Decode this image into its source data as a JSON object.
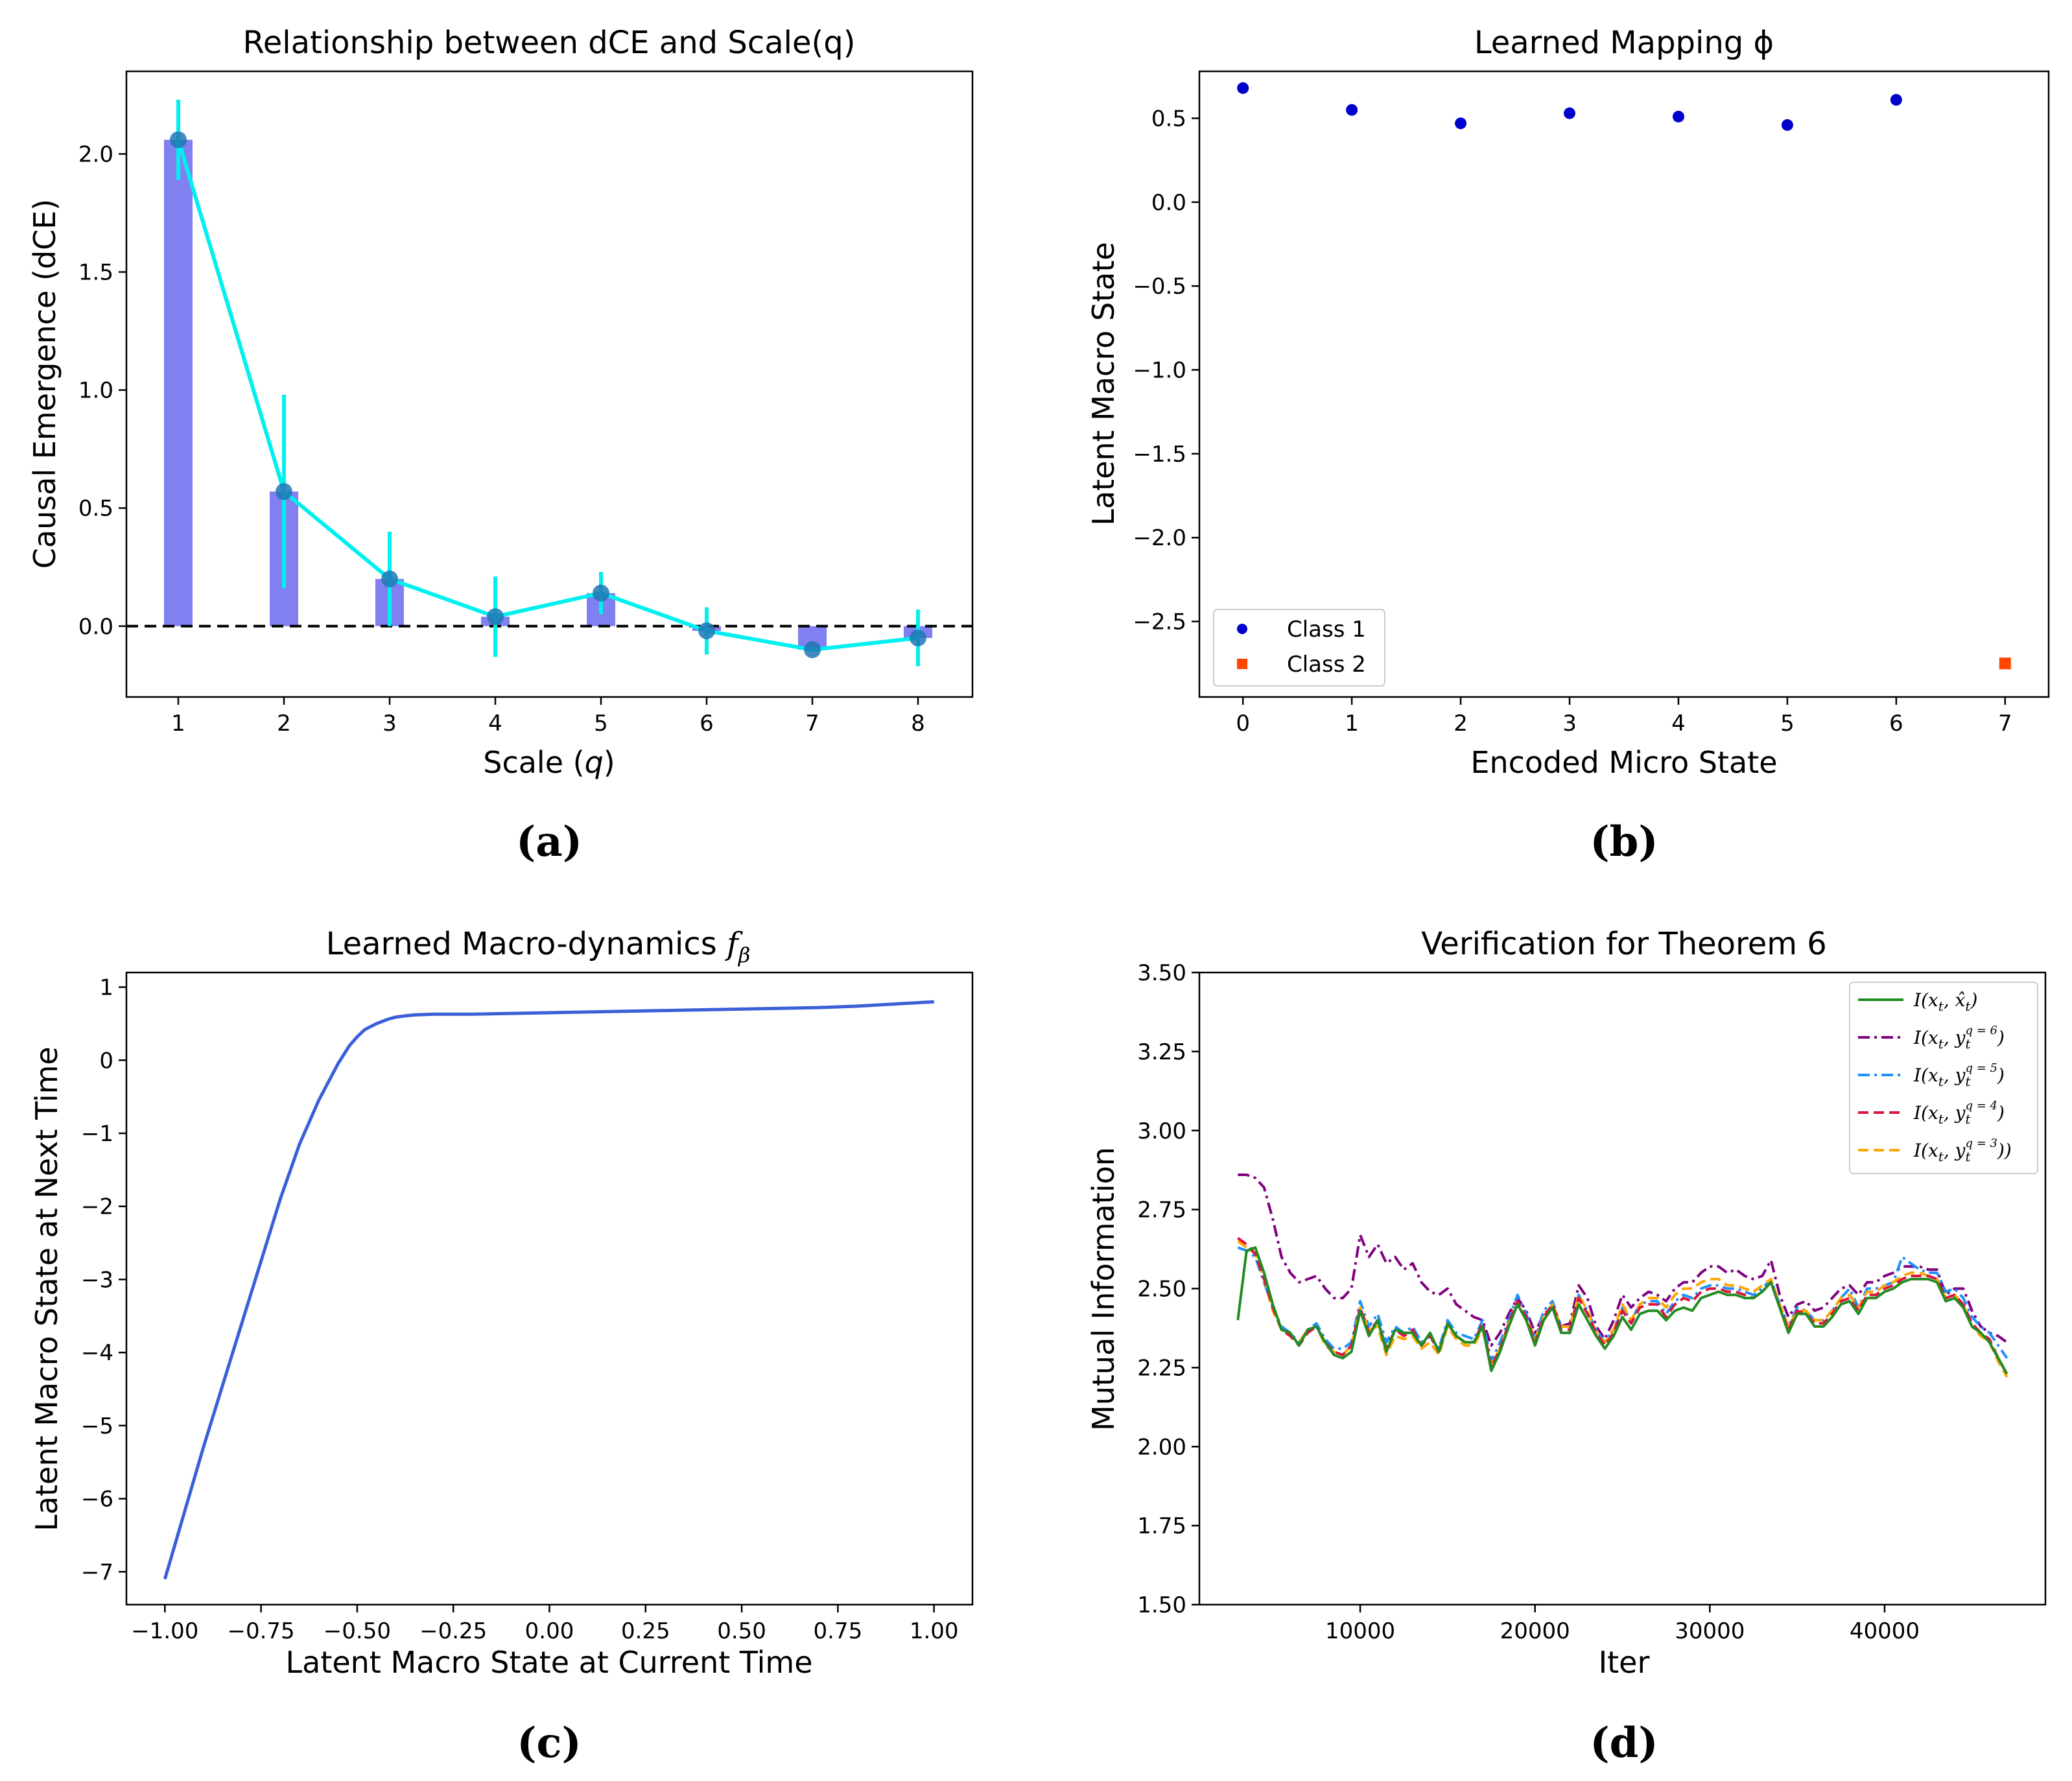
{
  "chart_data": [
    {
      "id": "a",
      "type": "bar",
      "panel_label": "(a)",
      "title": "Relationship between dCE and Scale(q)",
      "xlabel": "Scale (q)",
      "ylabel": "Causal Emergence (dCE)",
      "categories": [
        "1",
        "2",
        "3",
        "4",
        "5",
        "6",
        "7",
        "8"
      ],
      "values": [
        2.06,
        0.57,
        0.2,
        0.04,
        0.14,
        -0.02,
        -0.1,
        -0.05
      ],
      "errors": [
        0.17,
        0.41,
        0.2,
        0.17,
        0.09,
        0.1,
        0.0,
        0.12
      ],
      "ylim": [
        -0.3,
        2.35
      ],
      "yticks": [
        "0.0",
        "0.5",
        "1.0",
        "1.5",
        "2.0"
      ],
      "ytick_values": [
        0,
        0.5,
        1.0,
        1.5,
        2.0
      ],
      "bar_color": "#8080f0",
      "line_color": "#00f0f0",
      "marker_color": "#1f77b4",
      "reference_line": 0
    },
    {
      "id": "b",
      "type": "scatter",
      "panel_label": "(b)",
      "title": "Learned Mapping ϕ",
      "xlabel": "Encoded Micro State",
      "ylabel": "Latent Macro State",
      "xlim": [
        -0.4,
        7.4
      ],
      "ylim": [
        -2.95,
        0.78
      ],
      "xticks": [
        "0",
        "1",
        "2",
        "3",
        "4",
        "5",
        "6",
        "7"
      ],
      "xtick_values": [
        0,
        1,
        2,
        3,
        4,
        5,
        6,
        7
      ],
      "yticks": [
        "0.5",
        "0.0",
        "−0.5",
        "−1.0",
        "−1.5",
        "−2.0",
        "−2.5"
      ],
      "ytick_values": [
        0.5,
        0.0,
        -0.5,
        -1.0,
        -1.5,
        -2.0,
        -2.5
      ],
      "series": [
        {
          "name": "Class 1",
          "color": "#0000cd",
          "marker": "circle",
          "x": [
            0,
            1,
            2,
            3,
            4,
            5,
            6
          ],
          "y": [
            0.68,
            0.55,
            0.47,
            0.53,
            0.51,
            0.46,
            0.61
          ]
        },
        {
          "name": "Class 2",
          "color": "#ff4500",
          "marker": "square",
          "x": [
            7
          ],
          "y": [
            -2.75
          ]
        }
      ],
      "legend_position": "lower-left"
    },
    {
      "id": "c",
      "type": "line",
      "panel_label": "(c)",
      "title": "Learned Macro-dynamics",
      "title_symbol": "f",
      "title_sub": "β",
      "xlabel": "Latent Macro State at Current Time",
      "ylabel": "Latent Macro State at Next Time",
      "xlim": [
        -1.1,
        1.1
      ],
      "ylim": [
        -7.45,
        1.2
      ],
      "xticks": [
        "−1.00",
        "−0.75",
        "−0.50",
        "−0.25",
        "0.00",
        "0.25",
        "0.50",
        "0.75",
        "1.00"
      ],
      "xtick_values": [
        -1.0,
        -0.75,
        -0.5,
        -0.25,
        0.0,
        0.25,
        0.5,
        0.75,
        1.0
      ],
      "yticks": [
        "1",
        "0",
        "−1",
        "−2",
        "−3",
        "−4",
        "−5",
        "−6",
        "−7"
      ],
      "ytick_values": [
        1,
        0,
        -1,
        -2,
        -3,
        -4,
        -5,
        -6,
        -7
      ],
      "color": "#3a5fd8",
      "x": [
        -1.0,
        -0.9,
        -0.8,
        -0.75,
        -0.7,
        -0.65,
        -0.6,
        -0.55,
        -0.52,
        -0.5,
        -0.48,
        -0.45,
        -0.42,
        -0.4,
        -0.37,
        -0.35,
        -0.3,
        -0.25,
        -0.2,
        -0.1,
        0.0,
        0.1,
        0.2,
        0.3,
        0.4,
        0.5,
        0.6,
        0.7,
        0.8,
        0.9,
        1.0
      ],
      "y": [
        -7.1,
        -5.3,
        -3.6,
        -2.75,
        -1.9,
        -1.15,
        -0.55,
        -0.05,
        0.2,
        0.32,
        0.42,
        0.5,
        0.56,
        0.59,
        0.61,
        0.62,
        0.63,
        0.63,
        0.63,
        0.64,
        0.65,
        0.66,
        0.67,
        0.68,
        0.69,
        0.7,
        0.71,
        0.72,
        0.74,
        0.77,
        0.8
      ]
    },
    {
      "id": "d",
      "type": "line",
      "panel_label": "(d)",
      "title": "Verification for Theorem 6",
      "xlabel": "Iter",
      "ylabel": "Mutual Information",
      "xlim": [
        800,
        49200
      ],
      "ylim": [
        1.5,
        3.5
      ],
      "xticks": [
        "10000",
        "20000",
        "30000",
        "40000"
      ],
      "xtick_values": [
        10000,
        20000,
        30000,
        40000
      ],
      "yticks": [
        "3.50",
        "3.25",
        "3.00",
        "2.75",
        "2.50",
        "2.25",
        "2.00",
        "1.75",
        "1.50"
      ],
      "ytick_values": [
        3.5,
        3.25,
        3.0,
        2.75,
        2.5,
        2.25,
        2.0,
        1.75,
        1.5
      ],
      "x": [
        3000,
        3500,
        4000,
        4500,
        5000,
        5500,
        6000,
        6500,
        7000,
        7500,
        8000,
        8500,
        9000,
        9500,
        10000,
        10500,
        11000,
        11500,
        12000,
        12500,
        13000,
        13500,
        14000,
        14500,
        15000,
        15500,
        16000,
        16500,
        17000,
        17500,
        18000,
        18500,
        19000,
        19500,
        20000,
        20500,
        21000,
        21500,
        22000,
        22500,
        23000,
        23500,
        24000,
        24500,
        25000,
        25500,
        26000,
        26500,
        27000,
        27500,
        28000,
        28500,
        29000,
        29500,
        30000,
        30500,
        31000,
        31500,
        32000,
        32500,
        33000,
        33500,
        34000,
        34500,
        35000,
        35500,
        36000,
        36500,
        37000,
        37500,
        38000,
        38500,
        39000,
        39500,
        40000,
        40500,
        41000,
        41500,
        42000,
        42500,
        43000,
        43500,
        44000,
        44500,
        45000,
        45500,
        46000,
        46500,
        47000
      ],
      "series": [
        {
          "name": "I(x_t, x̂_t)",
          "legend": [
            "I(x",
            "t",
            ", x̂",
            "t",
            ")"
          ],
          "color": "#228b22",
          "dash": "solid",
          "y": [
            2.4,
            2.62,
            2.63,
            2.55,
            2.45,
            2.37,
            2.36,
            2.32,
            2.37,
            2.38,
            2.33,
            2.29,
            2.28,
            2.3,
            2.43,
            2.35,
            2.4,
            2.3,
            2.37,
            2.36,
            2.36,
            2.32,
            2.36,
            2.3,
            2.39,
            2.35,
            2.33,
            2.33,
            2.38,
            2.24,
            2.3,
            2.38,
            2.45,
            2.4,
            2.32,
            2.4,
            2.44,
            2.36,
            2.36,
            2.45,
            2.4,
            2.35,
            2.31,
            2.35,
            2.41,
            2.37,
            2.42,
            2.43,
            2.43,
            2.4,
            2.43,
            2.44,
            2.43,
            2.47,
            2.48,
            2.49,
            2.48,
            2.48,
            2.47,
            2.47,
            2.49,
            2.52,
            2.44,
            2.36,
            2.42,
            2.42,
            2.38,
            2.38,
            2.41,
            2.45,
            2.46,
            2.42,
            2.47,
            2.47,
            2.49,
            2.5,
            2.52,
            2.53,
            2.53,
            2.53,
            2.52,
            2.46,
            2.47,
            2.44,
            2.38,
            2.36,
            2.33,
            2.28,
            2.23
          ]
        },
        {
          "name": "I(x_t, y_t^{q=6})",
          "legend": [
            "I(x",
            "t",
            ", y",
            "t",
            "q = 6",
            ")"
          ],
          "color": "#800080",
          "dash": "dashdot",
          "y": [
            2.86,
            2.86,
            2.85,
            2.82,
            2.72,
            2.6,
            2.55,
            2.52,
            2.53,
            2.54,
            2.5,
            2.47,
            2.47,
            2.5,
            2.67,
            2.6,
            2.64,
            2.58,
            2.6,
            2.56,
            2.58,
            2.52,
            2.49,
            2.48,
            2.5,
            2.45,
            2.43,
            2.41,
            2.4,
            2.32,
            2.36,
            2.42,
            2.47,
            2.43,
            2.36,
            2.42,
            2.44,
            2.38,
            2.39,
            2.51,
            2.47,
            2.38,
            2.34,
            2.4,
            2.48,
            2.44,
            2.47,
            2.49,
            2.48,
            2.46,
            2.5,
            2.52,
            2.52,
            2.55,
            2.57,
            2.57,
            2.55,
            2.56,
            2.54,
            2.53,
            2.54,
            2.59,
            2.48,
            2.41,
            2.45,
            2.46,
            2.43,
            2.44,
            2.47,
            2.5,
            2.51,
            2.48,
            2.52,
            2.52,
            2.54,
            2.55,
            2.57,
            2.57,
            2.57,
            2.56,
            2.56,
            2.48,
            2.5,
            2.5,
            2.43,
            2.38,
            2.36,
            2.35,
            2.33
          ]
        },
        {
          "name": "I(x_t, y_t^{q=5})",
          "legend": [
            "I(x",
            "t",
            ", y",
            "t",
            "q = 5",
            ")"
          ],
          "color": "#1e90ff",
          "dash": "dashdot",
          "y": [
            2.63,
            2.62,
            2.6,
            2.52,
            2.44,
            2.38,
            2.36,
            2.33,
            2.37,
            2.39,
            2.34,
            2.31,
            2.31,
            2.33,
            2.46,
            2.38,
            2.42,
            2.33,
            2.38,
            2.36,
            2.38,
            2.33,
            2.35,
            2.31,
            2.4,
            2.36,
            2.35,
            2.34,
            2.4,
            2.27,
            2.33,
            2.4,
            2.48,
            2.42,
            2.34,
            2.43,
            2.46,
            2.38,
            2.38,
            2.48,
            2.43,
            2.37,
            2.33,
            2.37,
            2.44,
            2.4,
            2.45,
            2.46,
            2.46,
            2.42,
            2.46,
            2.48,
            2.47,
            2.5,
            2.51,
            2.51,
            2.5,
            2.5,
            2.49,
            2.48,
            2.5,
            2.53,
            2.45,
            2.38,
            2.44,
            2.43,
            2.4,
            2.4,
            2.43,
            2.47,
            2.5,
            2.44,
            2.5,
            2.5,
            2.51,
            2.52,
            2.6,
            2.58,
            2.56,
            2.55,
            2.55,
            2.49,
            2.5,
            2.47,
            2.41,
            2.38,
            2.36,
            2.32,
            2.28
          ]
        },
        {
          "name": "I(x_t, y_t^{q=4})",
          "legend": [
            "I(x",
            "t",
            ", y",
            "t",
            "q = 4",
            ")"
          ],
          "color": "#dc143c",
          "dash": "dashed",
          "y": [
            2.66,
            2.64,
            2.61,
            2.53,
            2.44,
            2.37,
            2.35,
            2.32,
            2.36,
            2.38,
            2.33,
            2.3,
            2.29,
            2.32,
            2.44,
            2.36,
            2.4,
            2.31,
            2.37,
            2.35,
            2.37,
            2.32,
            2.35,
            2.3,
            2.39,
            2.35,
            2.33,
            2.33,
            2.39,
            2.25,
            2.31,
            2.39,
            2.46,
            2.41,
            2.33,
            2.41,
            2.45,
            2.37,
            2.37,
            2.47,
            2.42,
            2.36,
            2.32,
            2.36,
            2.43,
            2.39,
            2.44,
            2.45,
            2.45,
            2.41,
            2.45,
            2.47,
            2.46,
            2.49,
            2.5,
            2.5,
            2.49,
            2.49,
            2.48,
            2.47,
            2.49,
            2.52,
            2.44,
            2.37,
            2.43,
            2.42,
            2.39,
            2.39,
            2.42,
            2.46,
            2.47,
            2.43,
            2.48,
            2.48,
            2.5,
            2.51,
            2.53,
            2.54,
            2.54,
            2.54,
            2.53,
            2.47,
            2.48,
            2.45,
            2.39,
            2.36,
            2.34,
            2.28,
            2.23
          ]
        },
        {
          "name": "I(x_t, y_t^{q=3}))",
          "legend": [
            "I(x",
            "t",
            ", y",
            "t",
            "q = 3",
            "))"
          ],
          "color": "#ffa500",
          "dash": "dashed",
          "y": [
            2.65,
            2.63,
            2.61,
            2.53,
            2.43,
            2.37,
            2.35,
            2.33,
            2.37,
            2.38,
            2.32,
            2.3,
            2.29,
            2.32,
            2.44,
            2.37,
            2.38,
            2.29,
            2.35,
            2.34,
            2.35,
            2.31,
            2.33,
            2.29,
            2.38,
            2.34,
            2.32,
            2.32,
            2.37,
            2.26,
            2.31,
            2.39,
            2.45,
            2.41,
            2.34,
            2.41,
            2.45,
            2.38,
            2.38,
            2.48,
            2.43,
            2.36,
            2.33,
            2.37,
            2.45,
            2.4,
            2.45,
            2.47,
            2.47,
            2.44,
            2.48,
            2.5,
            2.5,
            2.52,
            2.53,
            2.53,
            2.51,
            2.51,
            2.5,
            2.49,
            2.51,
            2.53,
            2.45,
            2.38,
            2.43,
            2.43,
            2.4,
            2.4,
            2.43,
            2.47,
            2.48,
            2.44,
            2.49,
            2.49,
            2.51,
            2.52,
            2.54,
            2.55,
            2.55,
            2.54,
            2.53,
            2.47,
            2.48,
            2.45,
            2.38,
            2.35,
            2.33,
            2.27,
            2.22
          ]
        }
      ],
      "legend_position": "upper-right"
    }
  ]
}
